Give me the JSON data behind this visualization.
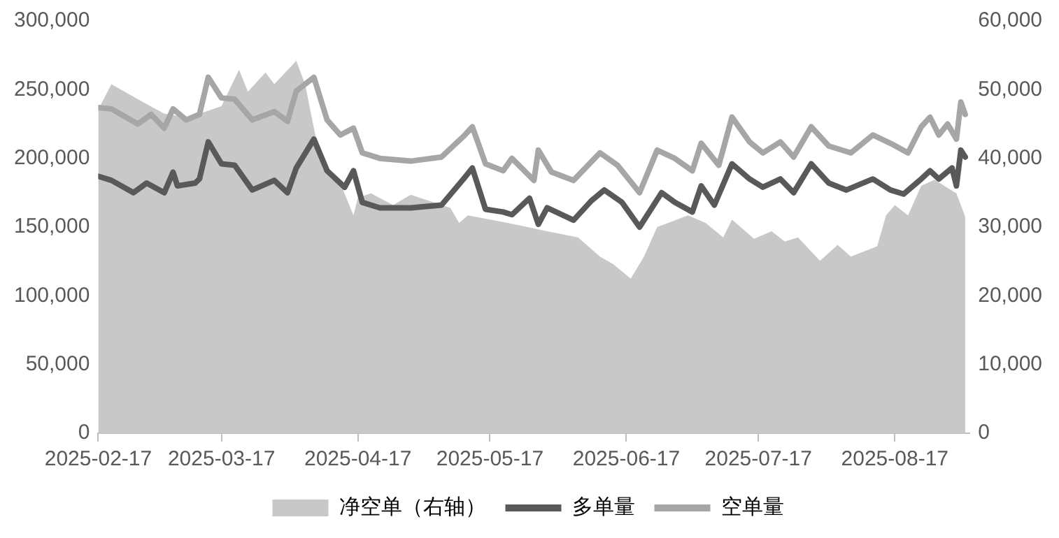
{
  "chart_data": {
    "type": "line",
    "xlim": [
      "2025-02-17",
      "2025-09-03"
    ],
    "xticks": [
      "2025-02-17",
      "2025-03-17",
      "2025-04-17",
      "2025-05-17",
      "2025-06-17",
      "2025-07-17",
      "2025-08-17"
    ],
    "ylim": [
      0,
      300000
    ],
    "yticks": [
      {
        "value": 0,
        "label": "0"
      },
      {
        "value": 50000,
        "label": "50,000"
      },
      {
        "value": 100000,
        "label": "100,000"
      },
      {
        "value": 150000,
        "label": "150,000"
      },
      {
        "value": 200000,
        "label": "200,000"
      },
      {
        "value": 250000,
        "label": "250,000"
      },
      {
        "value": 300000,
        "label": "300,000"
      }
    ],
    "y2lim": [
      0,
      60000
    ],
    "y2ticks": [
      {
        "value": 0,
        "label": "0"
      },
      {
        "value": 10000,
        "label": "10,000"
      },
      {
        "value": 20000,
        "label": "20,000"
      },
      {
        "value": 30000,
        "label": "30,000"
      },
      {
        "value": 40000,
        "label": "40,000"
      },
      {
        "value": 50000,
        "label": "50,000"
      },
      {
        "value": 60000,
        "label": "60,000"
      }
    ],
    "grid": false,
    "legend": "bottom",
    "marker": "none",
    "line_style": "solid",
    "series": [
      {
        "name": "净空单（右轴）",
        "type": "area",
        "axis": "y2",
        "color": "#c8c8c8",
        "x": [
          "2025-02-17",
          "2025-02-20",
          "2025-02-26",
          "2025-03-04",
          "2025-03-09",
          "2025-03-12",
          "2025-03-17",
          "2025-03-21",
          "2025-03-23",
          "2025-03-27",
          "2025-03-29",
          "2025-04-03",
          "2025-04-05",
          "2025-04-07",
          "2025-04-09",
          "2025-04-13",
          "2025-04-16",
          "2025-04-17",
          "2025-04-20",
          "2025-04-25",
          "2025-04-29",
          "2025-05-08",
          "2025-05-10",
          "2025-05-12",
          "2025-05-21",
          "2025-05-30",
          "2025-06-06",
          "2025-06-11",
          "2025-06-14",
          "2025-06-18",
          "2025-06-21",
          "2025-06-24",
          "2025-07-01",
          "2025-07-05",
          "2025-07-09",
          "2025-07-11",
          "2025-07-16",
          "2025-07-20",
          "2025-07-23",
          "2025-07-26",
          "2025-07-31",
          "2025-08-04",
          "2025-08-07",
          "2025-08-13",
          "2025-08-15",
          "2025-08-17",
          "2025-08-20",
          "2025-08-23",
          "2025-08-26",
          "2025-08-31",
          "2025-09-02"
        ],
        "values": [
          47100,
          50800,
          48600,
          46500,
          46000,
          46500,
          47600,
          52900,
          49700,
          52500,
          50800,
          54200,
          50800,
          44400,
          38600,
          36400,
          31700,
          34300,
          34900,
          33200,
          34700,
          32800,
          30600,
          31700,
          30600,
          29400,
          28500,
          25700,
          24600,
          22500,
          25700,
          30000,
          31700,
          30600,
          28500,
          31100,
          28300,
          29400,
          27900,
          28500,
          25100,
          27400,
          25700,
          27200,
          31700,
          33200,
          31700,
          36000,
          36900,
          34900,
          31500
        ]
      },
      {
        "name": "多单量",
        "type": "line",
        "color": "#595959",
        "x": [
          "2025-02-17",
          "2025-02-20",
          "2025-02-25",
          "2025-02-28",
          "2025-03-04",
          "2025-03-06",
          "2025-03-07",
          "2025-03-11",
          "2025-03-12",
          "2025-03-14",
          "2025-03-17",
          "2025-03-20",
          "2025-03-24",
          "2025-03-29",
          "2025-04-01",
          "2025-04-03",
          "2025-04-07",
          "2025-04-10",
          "2025-04-14",
          "2025-04-16",
          "2025-04-18",
          "2025-04-22",
          "2025-04-29",
          "2025-05-06",
          "2025-05-11",
          "2025-05-13",
          "2025-05-16",
          "2025-05-20",
          "2025-05-22",
          "2025-05-26",
          "2025-05-28",
          "2025-05-30",
          "2025-06-05",
          "2025-06-09",
          "2025-06-12",
          "2025-06-16",
          "2025-06-20",
          "2025-06-25",
          "2025-06-28",
          "2025-07-02",
          "2025-07-04",
          "2025-07-07",
          "2025-07-11",
          "2025-07-15",
          "2025-07-18",
          "2025-07-22",
          "2025-07-25",
          "2025-07-29",
          "2025-08-02",
          "2025-08-06",
          "2025-08-12",
          "2025-08-16",
          "2025-08-19",
          "2025-08-23",
          "2025-08-25",
          "2025-08-27",
          "2025-08-30",
          "2025-08-31",
          "2025-09-01",
          "2025-09-02"
        ],
        "values": [
          187000,
          184000,
          175000,
          182000,
          175000,
          190000,
          180000,
          182000,
          185000,
          212000,
          196000,
          195000,
          177000,
          184000,
          175000,
          193000,
          214000,
          191000,
          179000,
          191000,
          168000,
          164000,
          164000,
          166000,
          185000,
          193000,
          163000,
          161000,
          159000,
          171000,
          152000,
          164000,
          155000,
          169000,
          177000,
          168000,
          150000,
          175000,
          168000,
          161000,
          180000,
          166000,
          196000,
          185000,
          179000,
          185000,
          175000,
          196000,
          182000,
          177000,
          185000,
          177000,
          174000,
          185000,
          191000,
          185000,
          193000,
          180000,
          206000,
          201000
        ]
      },
      {
        "name": "空单量",
        "type": "line",
        "color": "#a6a6a6",
        "x": [
          "2025-02-17",
          "2025-02-20",
          "2025-02-26",
          "2025-03-01",
          "2025-03-04",
          "2025-03-06",
          "2025-03-09",
          "2025-03-12",
          "2025-03-14",
          "2025-03-17",
          "2025-03-20",
          "2025-03-24",
          "2025-03-29",
          "2025-04-01",
          "2025-04-03",
          "2025-04-07",
          "2025-04-10",
          "2025-04-13",
          "2025-04-16",
          "2025-04-18",
          "2025-04-22",
          "2025-04-29",
          "2025-05-06",
          "2025-05-11",
          "2025-05-13",
          "2025-05-16",
          "2025-05-20",
          "2025-05-22",
          "2025-05-27",
          "2025-05-28",
          "2025-05-31",
          "2025-06-05",
          "2025-06-11",
          "2025-06-15",
          "2025-06-20",
          "2025-06-24",
          "2025-06-28",
          "2025-07-02",
          "2025-07-04",
          "2025-07-08",
          "2025-07-11",
          "2025-07-15",
          "2025-07-18",
          "2025-07-22",
          "2025-07-25",
          "2025-07-29",
          "2025-08-02",
          "2025-08-07",
          "2025-08-12",
          "2025-08-16",
          "2025-08-20",
          "2025-08-23",
          "2025-08-25",
          "2025-08-27",
          "2025-08-29",
          "2025-08-31",
          "2025-09-01",
          "2025-09-02"
        ],
        "values": [
          237000,
          236000,
          225000,
          232000,
          222000,
          236000,
          228000,
          232000,
          259000,
          244000,
          243000,
          228000,
          234000,
          227000,
          249000,
          259000,
          228000,
          217000,
          222000,
          204000,
          200000,
          198000,
          201000,
          216000,
          223000,
          196000,
          191000,
          200000,
          184000,
          206000,
          190000,
          184000,
          204000,
          195000,
          175000,
          206000,
          200000,
          191000,
          211000,
          195000,
          230000,
          212000,
          204000,
          212000,
          201000,
          223000,
          209000,
          204000,
          217000,
          211000,
          204000,
          223000,
          230000,
          217000,
          225000,
          214000,
          241000,
          232000
        ]
      }
    ]
  }
}
